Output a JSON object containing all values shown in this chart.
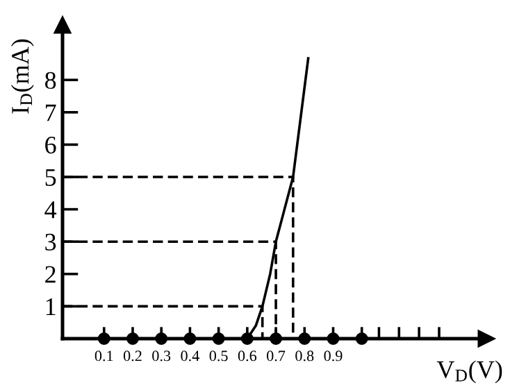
{
  "chart_data": {
    "type": "line",
    "xlabel": "V$_{D}$(V)",
    "ylabel": "I$_{D}$(mA)",
    "xlim": [
      -0.045,
      1.435
    ],
    "ylim": [
      0,
      9.7
    ],
    "xticks": [
      0.1,
      0.2,
      0.3,
      0.4,
      0.5,
      0.6,
      0.7,
      0.8,
      0.9,
      {
        "value": 1.0,
        "label": null
      },
      {
        "value": 1.06,
        "label": null
      },
      {
        "value": 1.13,
        "label": null
      },
      {
        "value": 1.2,
        "label": null
      },
      {
        "value": 1.27,
        "label": null
      }
    ],
    "yticks": [
      1,
      2,
      3,
      4,
      5,
      6,
      7,
      8
    ],
    "grid": false,
    "legend": false,
    "series": [
      {
        "color": "#000000",
        "line_style": "solid",
        "marker": "none",
        "x": [
          0.6,
          0.63,
          0.653,
          0.68,
          0.7,
          0.73,
          0.76,
          0.813
        ],
        "values": [
          0,
          0.4,
          1,
          2,
          3,
          4,
          5,
          8.67
        ]
      },
      {
        "color": "#000000",
        "line_style": "dashed",
        "marker": "none",
        "x": [
          -0.045,
          0.653,
          0.653
        ],
        "values": [
          1,
          1,
          0
        ]
      },
      {
        "color": "#000000",
        "line_style": "dashed",
        "marker": "none",
        "x": [
          -0.045,
          0.7,
          0.7
        ],
        "values": [
          3,
          3,
          0
        ]
      },
      {
        "color": "#000000",
        "line_style": "dashed",
        "marker": "none",
        "x": [
          -0.045,
          0.76,
          0.76
        ],
        "values": [
          5,
          5,
          0
        ]
      },
      {
        "type": "scatter",
        "color": "#000000",
        "marker": "circle",
        "x": [
          0.1,
          0.2,
          0.3,
          0.4,
          0.5,
          0.6,
          0.7,
          0.8,
          0.9,
          1.0
        ],
        "values": [
          0,
          0,
          0,
          0,
          0,
          0,
          0,
          0,
          0,
          0
        ]
      }
    ]
  }
}
